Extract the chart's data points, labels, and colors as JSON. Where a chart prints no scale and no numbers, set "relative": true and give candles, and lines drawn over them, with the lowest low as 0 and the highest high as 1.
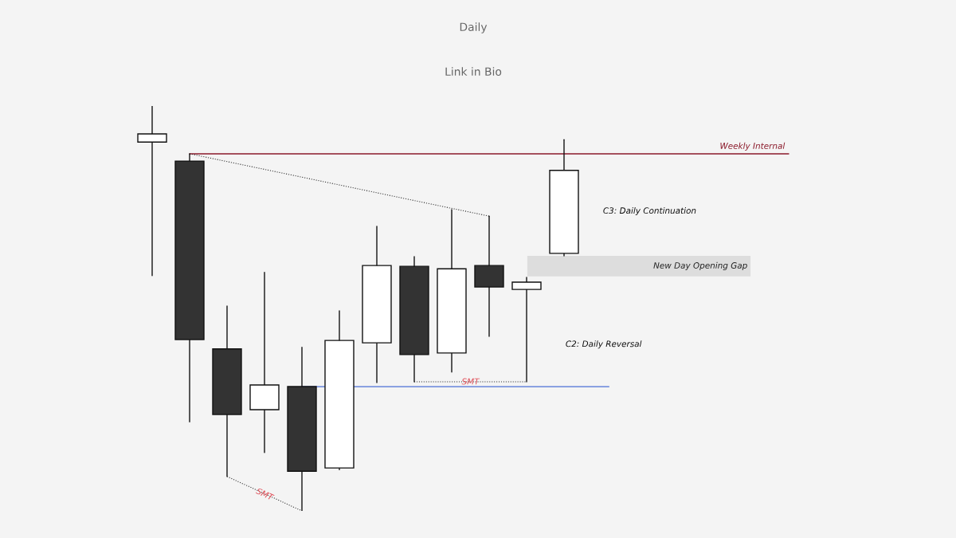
{
  "chart_data": {
    "type": "candlestick",
    "title": "Daily",
    "subtitle": "Link in Bio",
    "relative": true,
    "categories": [
      null,
      null,
      null,
      null,
      null,
      null,
      null,
      null,
      null,
      null,
      null,
      null
    ],
    "ohlc": [
      [
        0.911,
        1.0,
        0.581,
        0.931
      ],
      [
        0.864,
        0.882,
        0.22,
        0.423
      ],
      [
        0.4,
        0.506,
        0.085,
        0.238
      ],
      [
        0.25,
        0.589,
        0.144,
        0.311
      ],
      [
        0.307,
        0.404,
        0.0,
        0.098
      ],
      [
        0.106,
        0.494,
        0.102,
        0.421
      ],
      [
        0.415,
        0.703,
        0.317,
        0.606
      ],
      [
        0.604,
        0.628,
        0.319,
        0.386
      ],
      [
        0.39,
        0.744,
        0.343,
        0.598
      ],
      [
        0.606,
        0.728,
        0.431,
        0.553
      ],
      [
        0.547,
        0.577,
        0.319,
        0.565
      ],
      [
        0.636,
        0.917,
        0.63,
        0.841
      ]
    ],
    "ref_lines": [
      {
        "axis": "y",
        "value": 0.882,
        "label": "Weekly Internal",
        "color": "#8b1a2b"
      },
      {
        "axis": "y",
        "value": 0.307,
        "color": "#4a6fd6"
      }
    ],
    "bands": [
      {
        "axis": "y",
        "from": 0.579,
        "to": 0.63,
        "label": "New Day Opening Gap",
        "color": "#dddddd"
      }
    ],
    "series": [
      {
        "type": "line",
        "line_style": "dotted",
        "color": "#333333",
        "values": [
          null,
          0.882,
          null,
          null,
          null,
          null,
          null,
          null,
          null,
          0.728,
          null,
          null
        ]
      }
    ],
    "annotations": [
      "C3: Daily Continuation",
      "C2: Daily Reversal",
      "SMT",
      "SMT"
    ]
  }
}
